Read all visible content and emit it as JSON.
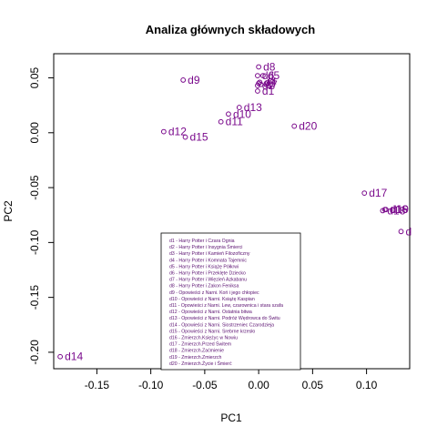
{
  "chart_data": {
    "type": "scatter",
    "title": "Analiza głównych składowych",
    "xlabel": "PC1",
    "ylabel": "PC2",
    "xlim": [
      -0.19,
      0.14
    ],
    "ylim": [
      -0.215,
      0.072
    ],
    "x_ticks": [
      -0.15,
      -0.1,
      -0.05,
      0.0,
      0.05,
      0.1
    ],
    "x_tick_labels": [
      "-0.15",
      "-0.10",
      "-0.05",
      "0.00",
      "0.05",
      "0.10"
    ],
    "y_ticks": [
      -0.2,
      -0.15,
      -0.1,
      -0.05,
      0.0,
      0.05
    ],
    "y_tick_labels": [
      "-0.20",
      "-0.15",
      "-0.10",
      "-0.05",
      "0.00",
      "0.05"
    ],
    "grid": false,
    "point_color": "#7a0a8c",
    "points": [
      {
        "label": "d1",
        "x": -0.001,
        "y": 0.038
      },
      {
        "label": "d2",
        "x": -0.001,
        "y": 0.043
      },
      {
        "label": "d3",
        "x": 0.0,
        "y": 0.045
      },
      {
        "label": "d4",
        "x": 0.001,
        "y": 0.046
      },
      {
        "label": "d5",
        "x": 0.004,
        "y": 0.052
      },
      {
        "label": "d6",
        "x": -0.001,
        "y": 0.052
      },
      {
        "label": "d7",
        "x": 0.002,
        "y": 0.044
      },
      {
        "label": "d8",
        "x": 0.0,
        "y": 0.06
      },
      {
        "label": "d9",
        "x": -0.07,
        "y": 0.048
      },
      {
        "label": "d10",
        "x": -0.028,
        "y": 0.017
      },
      {
        "label": "d11",
        "x": -0.035,
        "y": 0.01
      },
      {
        "label": "d12",
        "x": -0.088,
        "y": 0.001
      },
      {
        "label": "d13",
        "x": -0.018,
        "y": 0.023
      },
      {
        "label": "d14",
        "x": -0.184,
        "y": -0.204
      },
      {
        "label": "d15",
        "x": -0.068,
        "y": -0.004
      },
      {
        "label": "d16",
        "x": 0.117,
        "y": -0.07
      },
      {
        "label": "d17",
        "x": 0.098,
        "y": -0.055
      },
      {
        "label": "d18",
        "x": 0.115,
        "y": -0.071
      },
      {
        "label": "d19",
        "x": 0.118,
        "y": -0.07
      },
      {
        "label": "d20",
        "x": 0.033,
        "y": 0.006
      },
      {
        "label": "d",
        "x": 0.132,
        "y": -0.09
      }
    ],
    "legend": {
      "placement": "bottom-center",
      "entries": [
        "d1 - Harry Potter i Czara Ognia",
        "d2 - Harry Potter i Insygnia Śmierci",
        "d3 - Harry Potter i Kamień Filozoficzny",
        "d4 - Harry Potter i Komnata Tajemnic",
        "d5 - Harry Potter i Książę Półkrwi",
        "d6 - Harry Potter i Przeklęte Dziecko",
        "d7 - Harry Potter i Więzień Azkabanu",
        "d8 - Harry Potter i Zakon Feniksa",
        "d9 - Opowieści z Narni. Koń i jego chłopiec",
        "d10 - Opowieści z Narni. Książę Kaspian",
        "d11 - Opowieści z Narni. Lew, czarownica i stara szafa",
        "d12 - Opowieści z Narni. Ostatnia bitwa",
        "d13 - Opowieści z Narni. Podróż Wędrowca do Świtu",
        "d14 - Opowieści z Narni. Siostrzeniec Czarodzieja",
        "d15 - Opowieści z Narni. Srebrne krzesło",
        "d16 - Zmierzch.Księżyc w Nowiu",
        "d17 - Zmierzch.Przed Świtem",
        "d18 - Zmierzch.Zaćmienie",
        "d19 - Zmierzch.Zmierzch",
        "d20 - Zmierzch.Życie i Śmierć"
      ]
    }
  }
}
